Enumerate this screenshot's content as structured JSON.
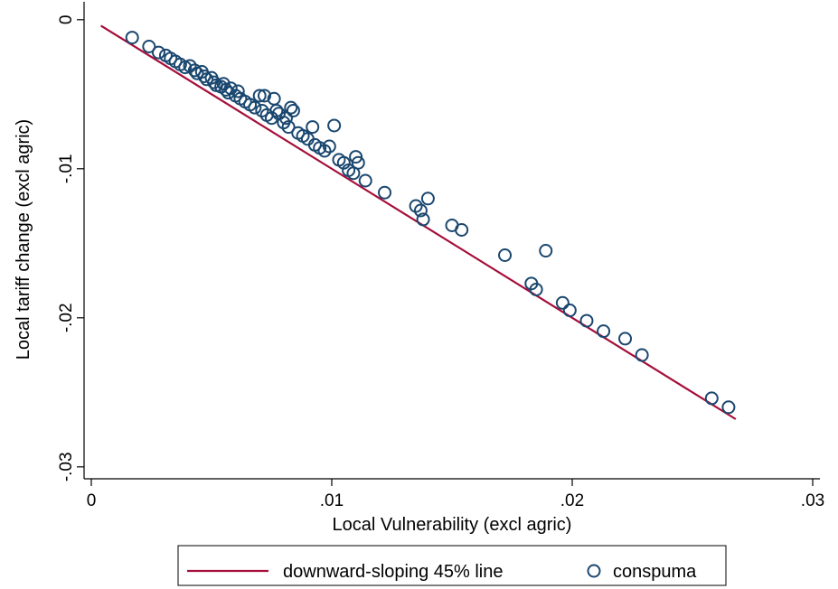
{
  "chart_data": {
    "type": "scatter",
    "xlabel": "Local Vulnerability (excl agric)",
    "ylabel": "Local tariff change (excl agric)",
    "xlim": [
      -0.0003,
      0.0303
    ],
    "ylim": [
      -0.0308,
      0.0012
    ],
    "x_ticks": [
      0,
      0.01,
      0.02,
      0.03
    ],
    "x_tick_labels": [
      "0",
      ".01",
      ".02",
      ".03"
    ],
    "y_ticks": [
      0,
      -0.01,
      -0.02,
      -0.03
    ],
    "y_tick_labels": [
      "0",
      "-.01",
      "-.02",
      "-.03"
    ],
    "grid": false,
    "legend_position": "bottom",
    "colors": {
      "line": "#a50f3a",
      "marker": "#1a476f"
    },
    "series": [
      {
        "name": "downward-sloping 45% line",
        "kind": "line",
        "x": [
          0.0004,
          0.0268
        ],
        "y": [
          -0.0004,
          -0.0268
        ]
      },
      {
        "name": "conspuma",
        "kind": "scatter",
        "marker": "hollow-circle",
        "points": [
          [
            0.0017,
            -0.0012
          ],
          [
            0.0024,
            -0.0018
          ],
          [
            0.0028,
            -0.0022
          ],
          [
            0.0031,
            -0.0024
          ],
          [
            0.0033,
            -0.0026
          ],
          [
            0.0035,
            -0.0028
          ],
          [
            0.0037,
            -0.003
          ],
          [
            0.0039,
            -0.0032
          ],
          [
            0.0041,
            -0.0031
          ],
          [
            0.0043,
            -0.0034
          ],
          [
            0.0044,
            -0.0036
          ],
          [
            0.0046,
            -0.0035
          ],
          [
            0.0047,
            -0.0038
          ],
          [
            0.0048,
            -0.004
          ],
          [
            0.005,
            -0.0039
          ],
          [
            0.0051,
            -0.0042
          ],
          [
            0.0052,
            -0.0044
          ],
          [
            0.0054,
            -0.0045
          ],
          [
            0.0055,
            -0.0043
          ],
          [
            0.0056,
            -0.0047
          ],
          [
            0.0057,
            -0.0049
          ],
          [
            0.0058,
            -0.0046
          ],
          [
            0.006,
            -0.0051
          ],
          [
            0.0061,
            -0.0048
          ],
          [
            0.0062,
            -0.0053
          ],
          [
            0.0064,
            -0.0055
          ],
          [
            0.0066,
            -0.0057
          ],
          [
            0.0068,
            -0.0059
          ],
          [
            0.007,
            -0.0051
          ],
          [
            0.0072,
            -0.0051
          ],
          [
            0.0071,
            -0.0061
          ],
          [
            0.0073,
            -0.0064
          ],
          [
            0.0075,
            -0.0066
          ],
          [
            0.0076,
            -0.0053
          ],
          [
            0.0077,
            -0.0061
          ],
          [
            0.0078,
            -0.0063
          ],
          [
            0.008,
            -0.0069
          ],
          [
            0.0081,
            -0.0066
          ],
          [
            0.0082,
            -0.0072
          ],
          [
            0.0083,
            -0.0059
          ],
          [
            0.0084,
            -0.0061
          ],
          [
            0.0086,
            -0.0076
          ],
          [
            0.0088,
            -0.0078
          ],
          [
            0.009,
            -0.008
          ],
          [
            0.0092,
            -0.0072
          ],
          [
            0.0093,
            -0.0084
          ],
          [
            0.0095,
            -0.0086
          ],
          [
            0.0097,
            -0.0088
          ],
          [
            0.0099,
            -0.0085
          ],
          [
            0.0101,
            -0.0071
          ],
          [
            0.0103,
            -0.0094
          ],
          [
            0.0105,
            -0.0096
          ],
          [
            0.0107,
            -0.0101
          ],
          [
            0.0109,
            -0.0103
          ],
          [
            0.011,
            -0.0092
          ],
          [
            0.0111,
            -0.0096
          ],
          [
            0.0114,
            -0.0108
          ],
          [
            0.0122,
            -0.0116
          ],
          [
            0.0135,
            -0.0125
          ],
          [
            0.0137,
            -0.0128
          ],
          [
            0.0138,
            -0.0134
          ],
          [
            0.014,
            -0.012
          ],
          [
            0.015,
            -0.0138
          ],
          [
            0.0154,
            -0.0141
          ],
          [
            0.0172,
            -0.0158
          ],
          [
            0.0183,
            -0.0177
          ],
          [
            0.0185,
            -0.0181
          ],
          [
            0.0189,
            -0.0155
          ],
          [
            0.0196,
            -0.019
          ],
          [
            0.0199,
            -0.0195
          ],
          [
            0.0206,
            -0.0202
          ],
          [
            0.0213,
            -0.0209
          ],
          [
            0.0222,
            -0.0214
          ],
          [
            0.0229,
            -0.0225
          ],
          [
            0.0258,
            -0.0254
          ],
          [
            0.0265,
            -0.026
          ]
        ]
      }
    ]
  }
}
